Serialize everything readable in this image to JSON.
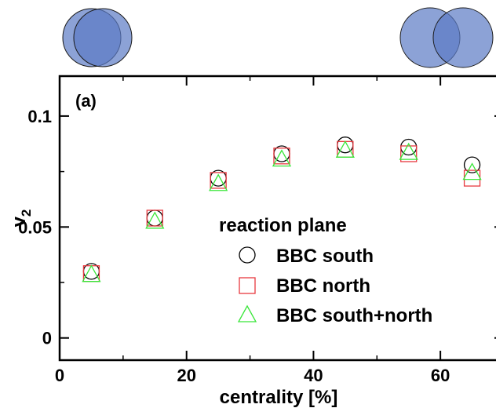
{
  "chart_data": {
    "type": "scatter",
    "panel_label": "(a)",
    "xlabel": "centrality [%]",
    "ylabel_main": "v",
    "ylabel_sub": "2",
    "xlim": [
      0,
      70
    ],
    "ylim": [
      -0.01,
      0.118
    ],
    "x_ticks": [
      0,
      20,
      40,
      60
    ],
    "x_tick_labels": [
      "0",
      "20",
      "40",
      "60"
    ],
    "y_ticks": [
      0,
      0.05,
      0.1
    ],
    "y_tick_labels": [
      "0",
      "0.05",
      "0.1"
    ],
    "grid": false,
    "legend_title": "reaction plane",
    "legend_position": "center-right",
    "series": [
      {
        "name": "BBC south",
        "marker": "circle",
        "color": "#000000",
        "x": [
          5,
          15,
          25,
          35,
          45,
          55,
          65
        ],
        "y": [
          0.03,
          0.054,
          0.072,
          0.083,
          0.087,
          0.086,
          0.078
        ]
      },
      {
        "name": "BBC north",
        "marker": "square",
        "color": "#e8393f",
        "x": [
          5,
          15,
          25,
          35,
          45,
          55,
          65
        ],
        "y": [
          0.029,
          0.054,
          0.071,
          0.082,
          0.085,
          0.083,
          0.072
        ]
      },
      {
        "name": "BBC south+north",
        "marker": "triangle",
        "color": "#39e639",
        "x": [
          5,
          15,
          25,
          35,
          45,
          55,
          65
        ],
        "y": [
          0.029,
          0.053,
          0.07,
          0.081,
          0.085,
          0.084,
          0.075
        ]
      }
    ],
    "overlap_icons": {
      "fill_color": "#5b7ac4",
      "left": "central",
      "right": "peripheral"
    }
  }
}
